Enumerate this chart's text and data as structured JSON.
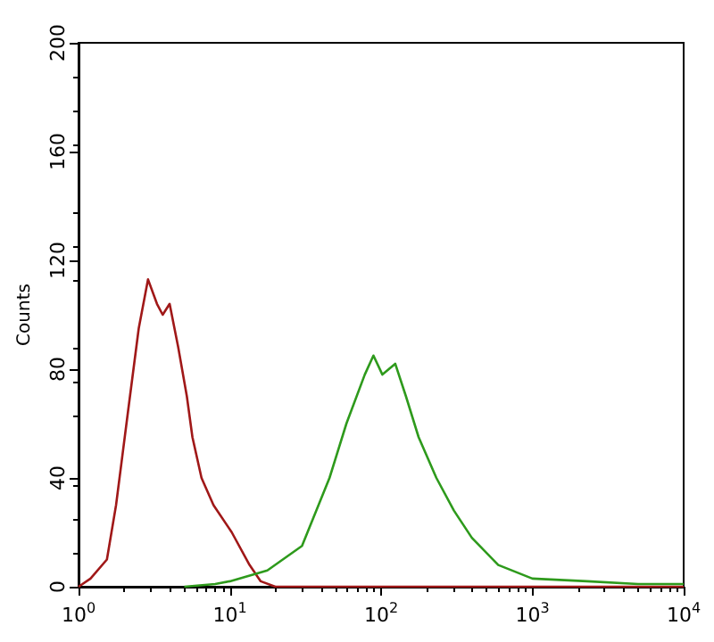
{
  "chart_data": {
    "type": "line",
    "ylabel": "Counts",
    "log": "x",
    "grid": false,
    "marker": "none",
    "line_style": "solid",
    "xlim": [
      1,
      10000
    ],
    "ylim": [
      0,
      200
    ],
    "xticks": [
      {
        "value": 1,
        "label": "10$^{0}$"
      },
      {
        "value": 10,
        "label": "10$^{1}$"
      },
      {
        "value": 100,
        "label": "10$^{2}$"
      },
      {
        "value": 1000,
        "label": "10$^{3}$"
      },
      {
        "value": 10000,
        "label": "10$^{4}$"
      }
    ],
    "yticks": [
      0,
      40,
      80,
      120,
      160,
      200
    ],
    "series": [
      {
        "color": "#a01818",
        "x": [
          1,
          1.2,
          1.54,
          1.77,
          2.13,
          2.5,
          2.88,
          3.3,
          3.6,
          4.0,
          4.56,
          5.2,
          5.66,
          6.5,
          7.8,
          10.3,
          13.5,
          16,
          20,
          50,
          100,
          1000,
          10000
        ],
        "values": [
          0,
          3,
          10,
          30,
          65,
          95,
          113,
          104,
          100,
          104,
          88,
          70,
          55,
          40,
          30,
          20,
          8,
          2,
          0,
          0,
          0,
          0,
          0
        ]
      },
      {
        "color": "#2e9a1c",
        "x": [
          5,
          8,
          10,
          17.7,
          30,
          45.6,
          59,
          78,
          89,
          102,
          124,
          146,
          177,
          232,
          303,
          398,
          595,
          1000,
          2300,
          5000,
          10000
        ],
        "values": [
          0,
          1,
          2,
          6,
          15,
          40,
          60,
          78,
          85,
          78,
          82,
          70,
          55,
          40,
          28,
          18,
          8,
          3,
          2,
          1,
          1
        ]
      }
    ]
  }
}
